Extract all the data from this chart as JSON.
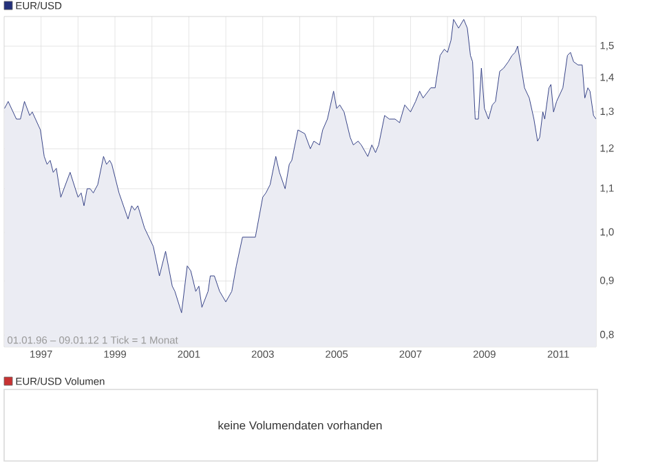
{
  "chart_data": [
    {
      "type": "area",
      "log": "y",
      "grid": true,
      "legend": "top left",
      "xlim": [
        "1996-01-01",
        "2012-01-09"
      ],
      "ylim": [
        0.78,
        1.6
      ],
      "xticks": [
        {
          "value": "1997-01-01",
          "label": "1997"
        },
        {
          "value": "1998-01-01",
          "label": null
        },
        {
          "value": "1999-01-01",
          "label": "1999"
        },
        {
          "value": "2000-01-01",
          "label": null
        },
        {
          "value": "2001-01-01",
          "label": "2001"
        },
        {
          "value": "2002-01-01",
          "label": null
        },
        {
          "value": "2003-01-01",
          "label": "2003"
        },
        {
          "value": "2004-01-01",
          "label": null
        },
        {
          "value": "2005-01-01",
          "label": "2005"
        },
        {
          "value": "2006-01-01",
          "label": null
        },
        {
          "value": "2007-01-01",
          "label": "2007"
        },
        {
          "value": "2008-01-01",
          "label": null
        },
        {
          "value": "2009-01-01",
          "label": "2009"
        },
        {
          "value": "2010-01-01",
          "label": null
        },
        {
          "value": "2011-01-01",
          "label": "2011"
        }
      ],
      "yticks": [
        {
          "value": 0.8,
          "label": "0,8"
        },
        {
          "value": 0.9,
          "label": "0,9"
        },
        {
          "value": 1.0,
          "label": "1,0"
        },
        {
          "value": 1.1,
          "label": "1,1"
        },
        {
          "value": 1.2,
          "label": "1,2"
        },
        {
          "value": 1.3,
          "label": "1,3"
        },
        {
          "value": 1.4,
          "label": "1,4"
        },
        {
          "value": 1.5,
          "label": "1,5"
        }
      ],
      "annotations": [
        "01.01.96 – 09.01.12   1 Tick = 1 Monat"
      ],
      "series": [
        {
          "name": "EUR/USD",
          "color": "#23307a",
          "x": [
            "1996-01-05",
            "1996-02-10",
            "1996-05-01",
            "1996-06-10",
            "1996-07-20",
            "1996-09-10",
            "1996-10-05",
            "1996-12-25",
            "1997-02-01",
            "1997-03-01",
            "1997-04-01",
            "1997-05-01",
            "1997-06-01",
            "1997-07-15",
            "1997-10-15",
            "1998-01-01",
            "1998-02-01",
            "1998-03-01",
            "1998-04-01",
            "1998-05-01",
            "1998-06-01",
            "1998-07-15",
            "1998-09-10",
            "1998-10-10",
            "1998-11-10",
            "1998-12-01",
            "1999-02-10",
            "1999-05-10",
            "1999-06-15",
            "1999-07-15",
            "1999-08-15",
            "1999-10-20",
            "2000-01-15",
            "2000-03-15",
            "2000-05-15",
            "2000-07-20",
            "2000-08-15",
            "2000-10-20",
            "2000-12-15",
            "2001-01-20",
            "2001-03-10",
            "2001-04-10",
            "2001-05-10",
            "2001-07-10",
            "2001-08-01",
            "2001-09-10",
            "2001-11-01",
            "2002-01-01",
            "2002-03-01",
            "2002-04-15",
            "2002-06-15",
            "2002-07-20",
            "2002-10-20",
            "2003-01-01",
            "2003-02-01",
            "2003-03-15",
            "2003-05-10",
            "2003-06-15",
            "2003-08-10",
            "2003-09-20",
            "2003-10-15",
            "2003-12-15",
            "2004-02-20",
            "2004-04-15",
            "2004-05-20",
            "2004-07-15",
            "2004-08-15",
            "2004-10-01",
            "2004-12-01",
            "2005-01-01",
            "2005-02-01",
            "2005-03-15",
            "2005-05-15",
            "2005-06-15",
            "2005-08-01",
            "2005-09-01",
            "2005-11-05",
            "2005-12-15",
            "2006-01-20",
            "2006-02-20",
            "2006-04-20",
            "2006-06-05",
            "2006-08-01",
            "2006-09-15",
            "2006-11-05",
            "2007-01-01",
            "2007-02-20",
            "2007-04-01",
            "2007-05-05",
            "2007-07-20",
            "2007-09-01",
            "2007-10-20",
            "2007-12-01",
            "2008-01-01",
            "2008-02-05",
            "2008-03-01",
            "2008-04-20",
            "2008-06-10",
            "2008-07-15",
            "2008-08-15",
            "2008-09-05",
            "2008-10-01",
            "2008-11-01",
            "2008-12-01",
            "2009-01-01",
            "2009-02-10",
            "2009-03-20",
            "2009-04-20",
            "2009-06-01",
            "2009-07-10",
            "2009-08-25",
            "2009-10-01",
            "2009-11-01",
            "2009-11-25",
            "2010-01-01",
            "2010-02-01",
            "2010-03-20",
            "2010-05-05",
            "2010-06-10",
            "2010-07-01",
            "2010-08-01",
            "2010-08-20",
            "2010-10-01",
            "2010-10-20",
            "2010-11-15",
            "2010-12-15",
            "2011-02-15",
            "2011-04-01",
            "2011-05-01",
            "2011-06-01",
            "2011-07-15",
            "2011-08-25",
            "2011-09-20",
            "2011-10-20",
            "2011-11-10",
            "2011-12-15",
            "2012-01-09"
          ],
          "values": [
            1.31,
            1.33,
            1.28,
            1.28,
            1.33,
            1.29,
            1.3,
            1.25,
            1.18,
            1.16,
            1.17,
            1.14,
            1.15,
            1.08,
            1.14,
            1.08,
            1.09,
            1.06,
            1.1,
            1.1,
            1.09,
            1.11,
            1.18,
            1.16,
            1.17,
            1.16,
            1.09,
            1.03,
            1.06,
            1.05,
            1.06,
            1.01,
            0.97,
            0.91,
            0.96,
            0.89,
            0.88,
            0.84,
            0.93,
            0.92,
            0.88,
            0.89,
            0.85,
            0.88,
            0.91,
            0.91,
            0.88,
            0.86,
            0.88,
            0.93,
            0.99,
            0.99,
            0.99,
            1.08,
            1.09,
            1.11,
            1.18,
            1.14,
            1.1,
            1.16,
            1.17,
            1.25,
            1.24,
            1.2,
            1.22,
            1.21,
            1.25,
            1.28,
            1.36,
            1.31,
            1.32,
            1.3,
            1.23,
            1.21,
            1.22,
            1.21,
            1.18,
            1.21,
            1.19,
            1.21,
            1.29,
            1.28,
            1.28,
            1.27,
            1.32,
            1.3,
            1.33,
            1.36,
            1.34,
            1.37,
            1.37,
            1.47,
            1.49,
            1.48,
            1.52,
            1.59,
            1.56,
            1.59,
            1.56,
            1.47,
            1.45,
            1.28,
            1.28,
            1.43,
            1.31,
            1.28,
            1.32,
            1.33,
            1.42,
            1.43,
            1.45,
            1.47,
            1.48,
            1.5,
            1.43,
            1.37,
            1.34,
            1.28,
            1.22,
            1.23,
            1.3,
            1.28,
            1.37,
            1.38,
            1.3,
            1.33,
            1.37,
            1.47,
            1.48,
            1.45,
            1.44,
            1.44,
            1.34,
            1.37,
            1.36,
            1.29,
            1.28
          ]
        }
      ]
    },
    {
      "type": "other",
      "title": "EUR/USD Volumen",
      "color": "#c83232",
      "annotations": [
        "keine Volumendaten vorhanden"
      ]
    }
  ]
}
